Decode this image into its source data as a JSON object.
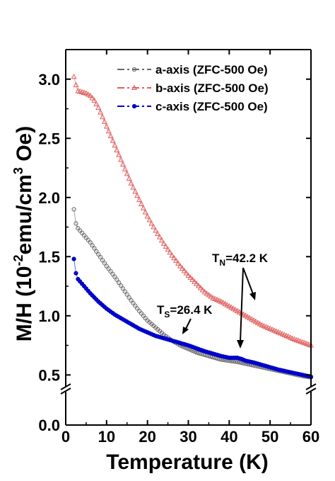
{
  "chart_data": {
    "type": "scatter",
    "xlabel": "Temperature (K)",
    "ylabel": {
      "prefix": "M/H (10",
      "sup1": "-2",
      "middle": "emu/cm",
      "sup2": "3",
      "suffix": " Oe)"
    },
    "xlim": [
      0,
      60
    ],
    "ylim_lower": [
      0.0,
      0.35
    ],
    "ylim_upper": [
      0.4,
      3.25
    ],
    "axis_break": true,
    "x_ticks": [
      "0",
      "10",
      "20",
      "30",
      "40",
      "50",
      "60"
    ],
    "y_ticks": [
      "0.0",
      "0.5",
      "1.0",
      "1.5",
      "2.0",
      "2.5",
      "3.0"
    ],
    "legend_position": "top-right",
    "series": [
      {
        "name": "a-axis (ZFC-500 Oe)",
        "color": "#666666",
        "marker": "circle",
        "points": [
          [
            2,
            1.9
          ],
          [
            2.5,
            1.78
          ],
          [
            3,
            1.74
          ],
          [
            4,
            1.7
          ],
          [
            5,
            1.66
          ],
          [
            6,
            1.62
          ],
          [
            8,
            1.52
          ],
          [
            10,
            1.42
          ],
          [
            12,
            1.33
          ],
          [
            14,
            1.23
          ],
          [
            16,
            1.13
          ],
          [
            18,
            1.04
          ],
          [
            20,
            0.96
          ],
          [
            22,
            0.9
          ],
          [
            24,
            0.84
          ],
          [
            26,
            0.79
          ],
          [
            28,
            0.75
          ],
          [
            30,
            0.72
          ],
          [
            32,
            0.69
          ],
          [
            35,
            0.66
          ],
          [
            38,
            0.63
          ],
          [
            40,
            0.62
          ],
          [
            42,
            0.61
          ],
          [
            44,
            0.595
          ],
          [
            46,
            0.58
          ],
          [
            48,
            0.565
          ],
          [
            50,
            0.55
          ],
          [
            52,
            0.535
          ],
          [
            54,
            0.52
          ],
          [
            56,
            0.505
          ],
          [
            58,
            0.49
          ],
          [
            60,
            0.48
          ]
        ]
      },
      {
        "name": "b-axis (ZFC-500 Oe)",
        "color": "#e06060",
        "marker": "triangle",
        "points": [
          [
            2,
            3.02
          ],
          [
            2.5,
            2.95
          ],
          [
            3,
            2.9
          ],
          [
            4,
            2.89
          ],
          [
            5,
            2.88
          ],
          [
            6,
            2.86
          ],
          [
            7,
            2.82
          ],
          [
            8,
            2.76
          ],
          [
            10,
            2.6
          ],
          [
            12,
            2.44
          ],
          [
            14,
            2.28
          ],
          [
            16,
            2.12
          ],
          [
            18,
            1.98
          ],
          [
            20,
            1.84
          ],
          [
            22,
            1.72
          ],
          [
            24,
            1.61
          ],
          [
            26,
            1.51
          ],
          [
            28,
            1.42
          ],
          [
            30,
            1.34
          ],
          [
            32,
            1.27
          ],
          [
            34,
            1.2
          ],
          [
            36,
            1.15
          ],
          [
            38,
            1.12
          ],
          [
            40,
            1.08
          ],
          [
            42,
            1.04
          ],
          [
            44,
            1.0
          ],
          [
            46,
            0.96
          ],
          [
            48,
            0.92
          ],
          [
            50,
            0.89
          ],
          [
            52,
            0.86
          ],
          [
            54,
            0.83
          ],
          [
            56,
            0.8
          ],
          [
            58,
            0.775
          ],
          [
            60,
            0.75
          ]
        ]
      },
      {
        "name": "c-axis (ZFC-500 Oe)",
        "color": "#0000cc",
        "marker": "circle-filled",
        "points": [
          [
            2,
            1.48
          ],
          [
            2.5,
            1.36
          ],
          [
            3,
            1.31
          ],
          [
            4,
            1.27
          ],
          [
            5,
            1.23
          ],
          [
            6,
            1.19
          ],
          [
            8,
            1.12
          ],
          [
            10,
            1.06
          ],
          [
            12,
            1.01
          ],
          [
            14,
            0.97
          ],
          [
            16,
            0.93
          ],
          [
            18,
            0.89
          ],
          [
            20,
            0.86
          ],
          [
            22,
            0.83
          ],
          [
            24,
            0.81
          ],
          [
            26,
            0.79
          ],
          [
            28,
            0.77
          ],
          [
            30,
            0.75
          ],
          [
            32,
            0.725
          ],
          [
            34,
            0.7
          ],
          [
            36,
            0.68
          ],
          [
            38,
            0.66
          ],
          [
            40,
            0.645
          ],
          [
            42,
            0.645
          ],
          [
            43,
            0.635
          ],
          [
            44,
            0.62
          ],
          [
            46,
            0.605
          ],
          [
            48,
            0.585
          ],
          [
            50,
            0.565
          ],
          [
            52,
            0.545
          ],
          [
            54,
            0.53
          ],
          [
            56,
            0.515
          ],
          [
            58,
            0.5
          ],
          [
            60,
            0.485
          ]
        ]
      }
    ],
    "annotations": [
      {
        "label": "T",
        "sub": "S",
        "value": "=26.4 K"
      },
      {
        "label": "T",
        "sub": "N",
        "value": "=42.2 K"
      }
    ]
  }
}
